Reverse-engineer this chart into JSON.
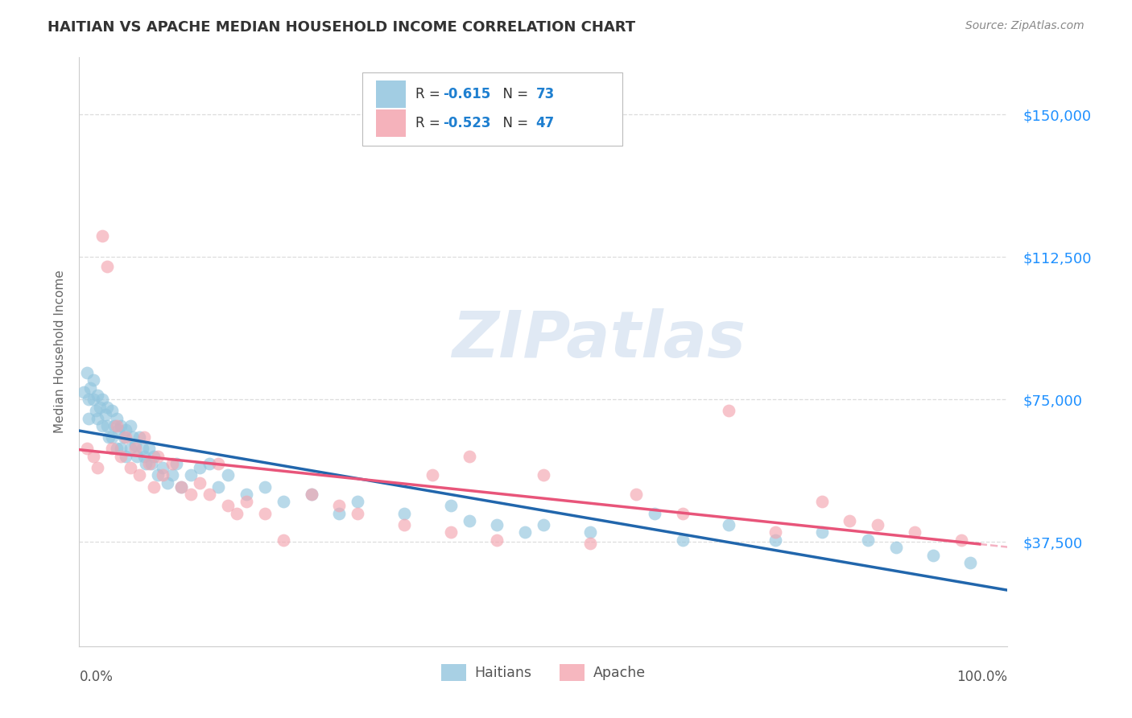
{
  "title": "HAITIAN VS APACHE MEDIAN HOUSEHOLD INCOME CORRELATION CHART",
  "source": "Source: ZipAtlas.com",
  "ylabel": "Median Household Income",
  "yticks": [
    37500,
    75000,
    112500,
    150000
  ],
  "ytick_labels": [
    "$37,500",
    "$75,000",
    "$112,500",
    "$150,000"
  ],
  "ymin": 10000,
  "ymax": 165000,
  "xmin": 0.0,
  "xmax": 1.0,
  "watermark_text": "ZIPatlas",
  "legend_haitian_R": "-0.615",
  "legend_haitian_N": "73",
  "legend_apache_R": "-0.523",
  "legend_apache_N": "47",
  "haitian_color": "#92C5DE",
  "apache_color": "#F4A5B0",
  "haitian_line_color": "#2166AC",
  "apache_line_color": "#E8557A",
  "background_color": "#FFFFFF",
  "grid_color": "#DDDDDD",
  "haitian_x": [
    0.005,
    0.008,
    0.01,
    0.01,
    0.012,
    0.015,
    0.015,
    0.018,
    0.02,
    0.02,
    0.022,
    0.025,
    0.025,
    0.028,
    0.03,
    0.03,
    0.032,
    0.035,
    0.035,
    0.038,
    0.04,
    0.04,
    0.042,
    0.045,
    0.045,
    0.048,
    0.05,
    0.05,
    0.055,
    0.055,
    0.058,
    0.06,
    0.062,
    0.065,
    0.068,
    0.07,
    0.072,
    0.075,
    0.078,
    0.08,
    0.085,
    0.09,
    0.095,
    0.1,
    0.105,
    0.11,
    0.12,
    0.13,
    0.14,
    0.15,
    0.16,
    0.18,
    0.2,
    0.22,
    0.25,
    0.28,
    0.3,
    0.35,
    0.4,
    0.42,
    0.45,
    0.48,
    0.5,
    0.55,
    0.62,
    0.65,
    0.7,
    0.75,
    0.8,
    0.85,
    0.88,
    0.92,
    0.96
  ],
  "haitian_y": [
    77000,
    82000,
    75000,
    70000,
    78000,
    80000,
    75000,
    72000,
    76000,
    70000,
    73000,
    75000,
    68000,
    71000,
    73000,
    68000,
    65000,
    72000,
    65000,
    68000,
    70000,
    62000,
    67000,
    68000,
    62000,
    65000,
    67000,
    60000,
    68000,
    62000,
    65000,
    63000,
    60000,
    65000,
    62000,
    60000,
    58000,
    62000,
    58000,
    60000,
    55000,
    57000,
    53000,
    55000,
    58000,
    52000,
    55000,
    57000,
    58000,
    52000,
    55000,
    50000,
    52000,
    48000,
    50000,
    45000,
    48000,
    45000,
    47000,
    43000,
    42000,
    40000,
    42000,
    40000,
    45000,
    38000,
    42000,
    38000,
    40000,
    38000,
    36000,
    34000,
    32000
  ],
  "apache_x": [
    0.008,
    0.015,
    0.02,
    0.025,
    0.03,
    0.035,
    0.04,
    0.045,
    0.05,
    0.055,
    0.06,
    0.065,
    0.07,
    0.075,
    0.08,
    0.085,
    0.09,
    0.1,
    0.11,
    0.12,
    0.13,
    0.14,
    0.15,
    0.16,
    0.17,
    0.18,
    0.2,
    0.22,
    0.25,
    0.28,
    0.3,
    0.35,
    0.38,
    0.4,
    0.42,
    0.45,
    0.5,
    0.55,
    0.6,
    0.65,
    0.7,
    0.75,
    0.8,
    0.83,
    0.86,
    0.9,
    0.95
  ],
  "apache_y": [
    62000,
    60000,
    57000,
    118000,
    110000,
    62000,
    68000,
    60000,
    65000,
    57000,
    62000,
    55000,
    65000,
    58000,
    52000,
    60000,
    55000,
    58000,
    52000,
    50000,
    53000,
    50000,
    58000,
    47000,
    45000,
    48000,
    45000,
    38000,
    50000,
    47000,
    45000,
    42000,
    55000,
    40000,
    60000,
    38000,
    55000,
    37000,
    50000,
    45000,
    72000,
    40000,
    48000,
    43000,
    42000,
    40000,
    38000
  ],
  "legend_R_color": "#1E7FD0",
  "legend_N_color": "#1E7FD0",
  "legend_label_color": "#333333",
  "ytick_color": "#1E90FF",
  "title_color": "#333333",
  "source_color": "#888888",
  "xlabel_color": "#555555"
}
